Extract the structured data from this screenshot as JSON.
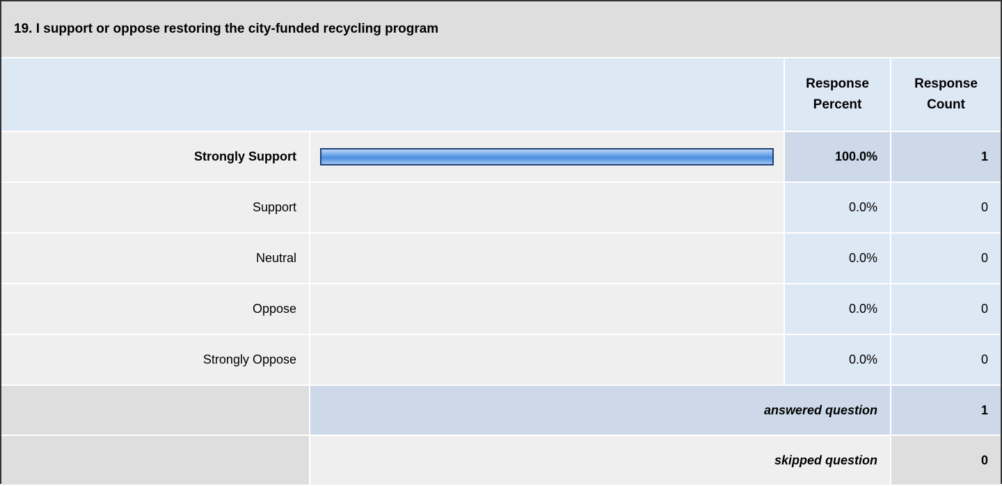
{
  "question": "19. I support or oppose restoring the city-funded recycling program",
  "columns": {
    "percent": "Response Percent",
    "count": "Response Count"
  },
  "xlim": [
    0,
    100
  ],
  "rows": [
    {
      "label": "Strongly Support",
      "percent": {
        "value": 100,
        "label": "100.0%"
      },
      "count": "1",
      "emphasized": true
    },
    {
      "label": "Support",
      "percent": {
        "value": 0,
        "label": "0.0%"
      },
      "count": "0"
    },
    {
      "label": "Neutral",
      "percent": {
        "value": 0,
        "label": "0.0%"
      },
      "count": "0"
    },
    {
      "label": "Oppose",
      "percent": {
        "value": 0,
        "label": "0.0%"
      },
      "count": "0"
    },
    {
      "label": "Strongly Oppose",
      "percent": {
        "value": 0,
        "label": "0.0%"
      },
      "count": "0"
    }
  ],
  "footer": [
    {
      "label": "answered question",
      "count": "1"
    },
    {
      "label": "skipped question",
      "count": "0"
    }
  ]
}
